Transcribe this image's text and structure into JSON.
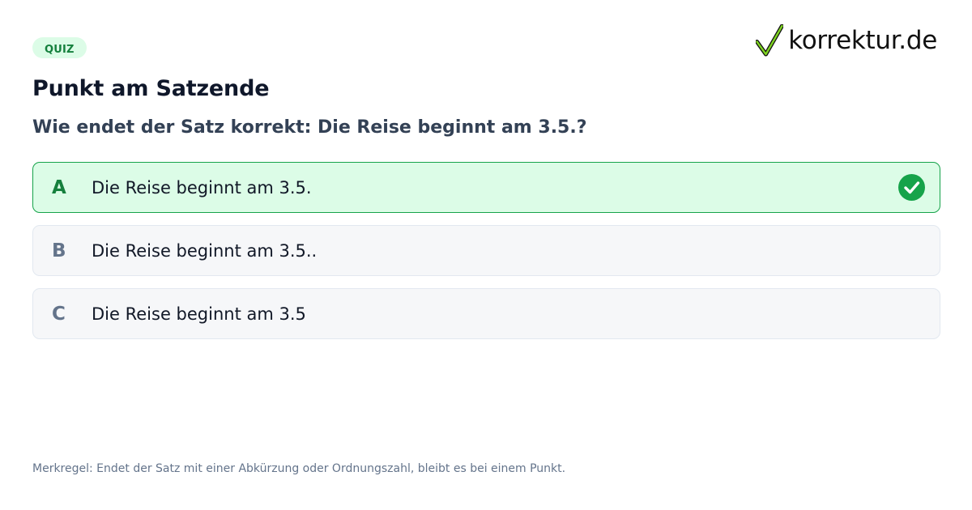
{
  "badge": "QUIZ",
  "logo": {
    "text": "korrektur.de"
  },
  "title": "Punkt am Satzende",
  "question": "Wie endet der Satz korrekt: Die Reise beginnt am 3.5.?",
  "options": [
    {
      "letter": "A",
      "text": "Die Reise beginnt am 3.5.",
      "correct": true
    },
    {
      "letter": "B",
      "text": "Die Reise beginnt am 3.5..",
      "correct": false
    },
    {
      "letter": "C",
      "text": "Die Reise beginnt am 3.5",
      "correct": false
    }
  ],
  "footnote": "Merkregel: Endet der Satz mit einer Abkürzung oder Ordnungszahl, bleibt es bei einem Punkt.",
  "colors": {
    "accent_green": "#16a34a",
    "correct_bg": "#dcfce7",
    "title": "#0f172a",
    "question": "#334155",
    "muted": "#64748b"
  },
  "icons": {
    "logo": "checkmark-icon",
    "correct_option": "check-circle-icon"
  }
}
